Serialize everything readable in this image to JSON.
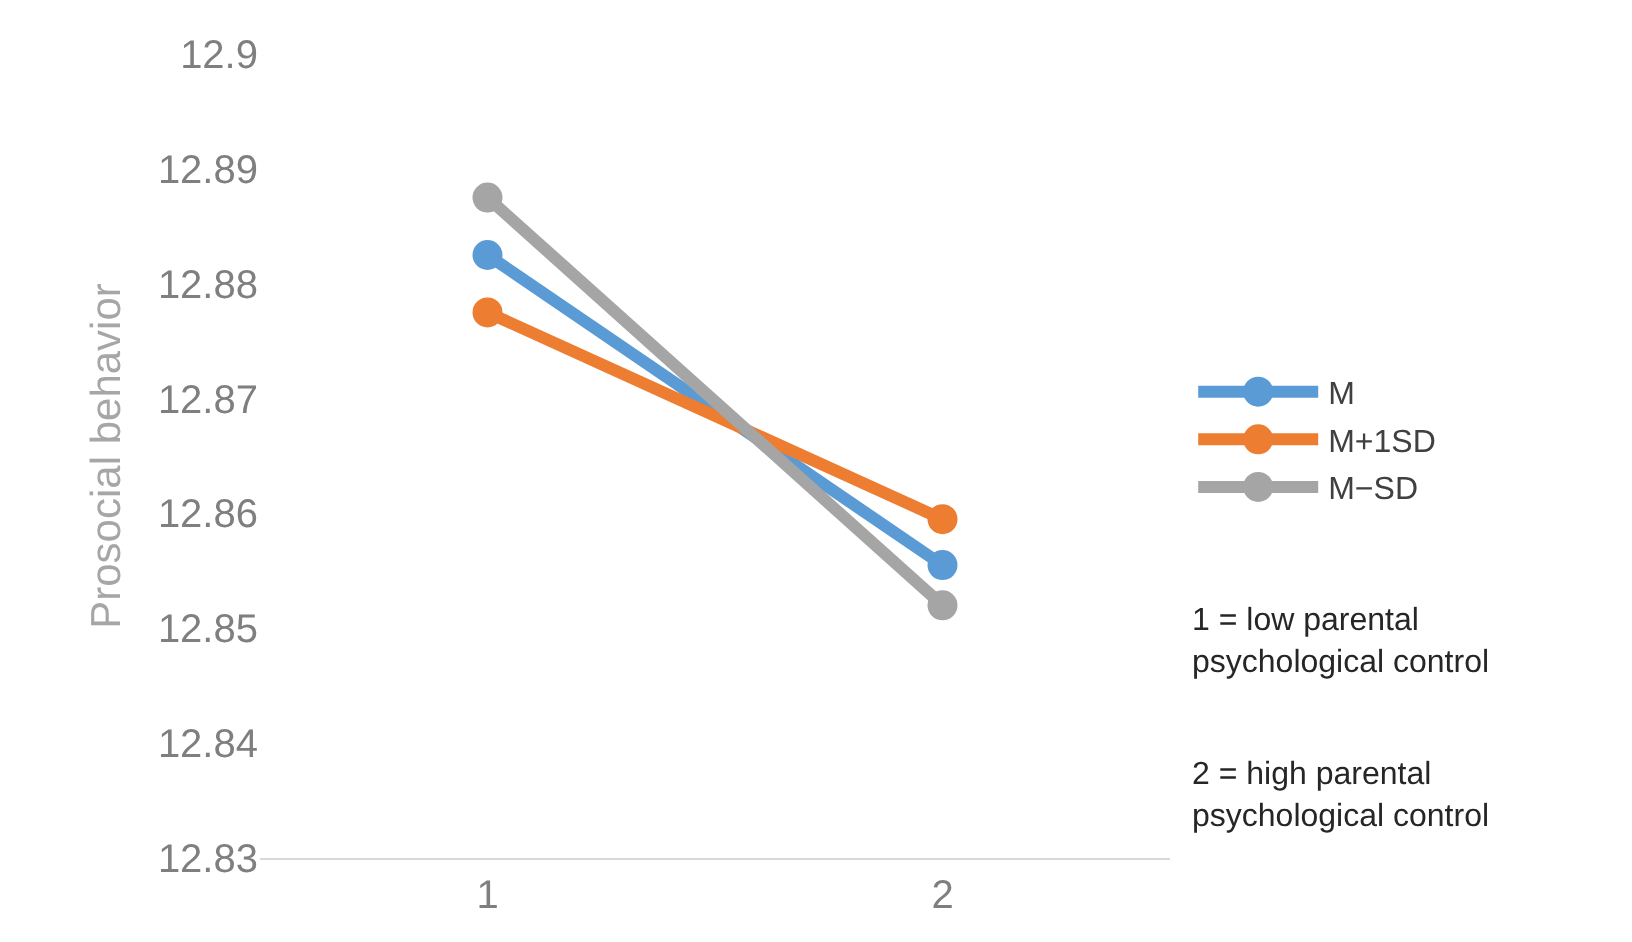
{
  "chart_data": {
    "type": "line",
    "ylabel": "Prosocial behavior",
    "categories": [
      "1",
      "2"
    ],
    "series": [
      {
        "name": "M",
        "color": "#5b9bd5",
        "values": [
          12.8825,
          12.8555
        ]
      },
      {
        "name": "M+1SD",
        "color": "#ed7d31",
        "values": [
          12.8775,
          12.8595
        ]
      },
      {
        "name": "M−SD",
        "color": "#a5a5a5",
        "values": [
          12.8875,
          12.852
        ]
      }
    ],
    "ylim": [
      12.83,
      12.9
    ],
    "yticks": [
      12.83,
      12.84,
      12.85,
      12.86,
      12.87,
      12.88,
      12.89,
      12.9
    ],
    "grid": false,
    "legend": "right",
    "marker": "circle",
    "line_style": "solid",
    "annotations": [
      "1 = low parental psychological control",
      "2 = high parental psychological control"
    ]
  }
}
